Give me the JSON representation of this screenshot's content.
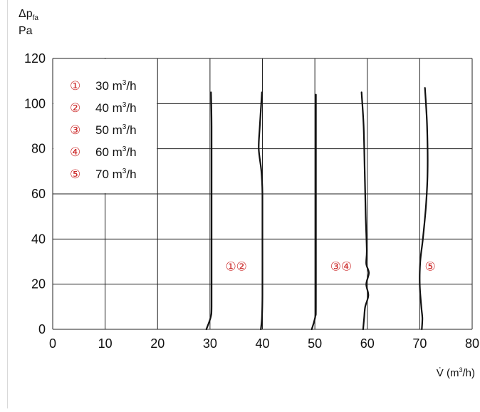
{
  "chart_data": {
    "type": "line",
    "ylabel_line1": "Δp",
    "ylabel_sub": "fa",
    "ylabel_unit": "Pa",
    "xlabel_prefix": "V̇ (m",
    "xlabel_sup": "3",
    "xlabel_suffix": "/h)",
    "xlim": [
      0,
      80
    ],
    "ylim": [
      0,
      120
    ],
    "x_ticks": [
      "0",
      "10",
      "20",
      "30",
      "40",
      "50",
      "60",
      "70",
      "80"
    ],
    "y_ticks": [
      "0",
      "20",
      "40",
      "60",
      "80",
      "100",
      "120"
    ],
    "grid": true,
    "legend_position": "top-left",
    "legend": [
      {
        "marker": "①",
        "value": "30",
        "unit_prefix": "m",
        "unit_sup": "3",
        "unit_suffix": "/h"
      },
      {
        "marker": "②",
        "value": "40",
        "unit_prefix": "m",
        "unit_sup": "3",
        "unit_suffix": "/h"
      },
      {
        "marker": "③",
        "value": "50",
        "unit_prefix": "m",
        "unit_sup": "3",
        "unit_suffix": "/h"
      },
      {
        "marker": "④",
        "value": "60",
        "unit_prefix": "m",
        "unit_sup": "3",
        "unit_suffix": "/h"
      },
      {
        "marker": "⑤",
        "value": "70",
        "unit_prefix": "m",
        "unit_sup": "3",
        "unit_suffix": "/h"
      }
    ],
    "annotations": [
      {
        "text": "①②",
        "x": 35,
        "y": 28
      },
      {
        "text": "③④",
        "x": 55,
        "y": 28
      },
      {
        "text": "⑤",
        "x": 72,
        "y": 28
      }
    ],
    "series": [
      {
        "points": [
          [
            29.3,
            0
          ],
          [
            29.8,
            3
          ],
          [
            30.2,
            6
          ],
          [
            30.3,
            10
          ],
          [
            30.3,
            30
          ],
          [
            30.3,
            60
          ],
          [
            30.3,
            90
          ],
          [
            30.2,
            105
          ]
        ]
      },
      {
        "points": [
          [
            39.7,
            0
          ],
          [
            39.9,
            5
          ],
          [
            40.0,
            15
          ],
          [
            40.0,
            40
          ],
          [
            40.0,
            60
          ],
          [
            39.8,
            70
          ],
          [
            39.3,
            80
          ],
          [
            39.5,
            90
          ],
          [
            39.9,
            105
          ]
        ]
      },
      {
        "points": [
          [
            49.4,
            0
          ],
          [
            49.8,
            3
          ],
          [
            50.1,
            6
          ],
          [
            50.2,
            10
          ],
          [
            50.2,
            40
          ],
          [
            50.2,
            70
          ],
          [
            50.2,
            104
          ]
        ]
      },
      {
        "points": [
          [
            59.2,
            0
          ],
          [
            59.4,
            5
          ],
          [
            59.6,
            10
          ],
          [
            60.2,
            15
          ],
          [
            59.8,
            20
          ],
          [
            60.3,
            25
          ],
          [
            59.8,
            29
          ],
          [
            59.9,
            35
          ],
          [
            59.7,
            50
          ],
          [
            59.5,
            70
          ],
          [
            59.3,
            90
          ],
          [
            58.9,
            105
          ]
        ]
      },
      {
        "points": [
          [
            70.4,
            0
          ],
          [
            70.5,
            5
          ],
          [
            70.3,
            10
          ],
          [
            70.0,
            20
          ],
          [
            70.1,
            30
          ],
          [
            70.6,
            40
          ],
          [
            71.2,
            55
          ],
          [
            71.5,
            70
          ],
          [
            71.4,
            90
          ],
          [
            71.0,
            107
          ]
        ]
      }
    ],
    "colors": {
      "curve": "#111111",
      "grid": "#222222",
      "annotation": "#cc2a2a",
      "text": "#111111"
    }
  }
}
